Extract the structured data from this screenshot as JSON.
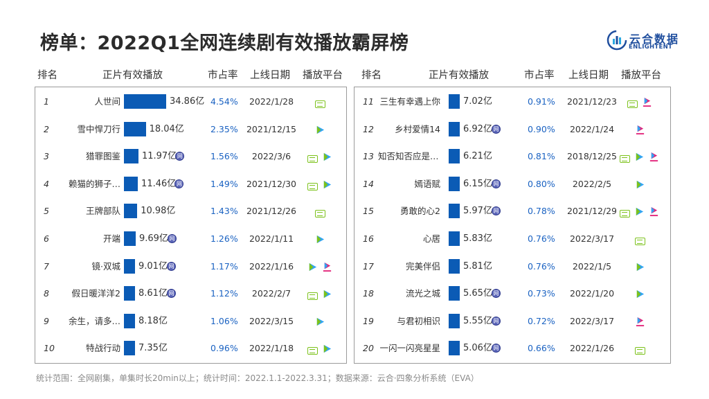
{
  "title": "榜单：2022Q1全网连续剧有效播放霸屏榜",
  "logo": {
    "cn": "云合数据",
    "en": "ENLIGHTENT"
  },
  "headers": {
    "rank": "排名",
    "views": "正片有效播放",
    "share": "市占率",
    "date": "上线日期",
    "platform": "播放平台"
  },
  "badge_text": "网",
  "colors": {
    "bar": "#0b5bb5",
    "share_text": "#1a62c2",
    "iqiyi": "#7cc21b",
    "tencent": "#31a4f2",
    "youku": "#e2247a",
    "net_badge": "#5a64b8"
  },
  "chart_data": {
    "type": "bar",
    "unit": "亿",
    "rows": [
      {
        "rank": "1",
        "name": "人世间",
        "value": 34.86,
        "label": "34.86亿",
        "web": false,
        "share": "4.54%",
        "date": "2022/1/28",
        "platforms": [
          "iqiyi"
        ]
      },
      {
        "rank": "2",
        "name": "雪中悍刀行",
        "value": 18.04,
        "label": "18.04亿",
        "web": false,
        "share": "2.35%",
        "date": "2021/12/15",
        "platforms": [
          "tencent"
        ]
      },
      {
        "rank": "3",
        "name": "猎罪图鉴",
        "value": 11.97,
        "label": "11.97亿",
        "web": true,
        "share": "1.56%",
        "date": "2022/3/6",
        "platforms": [
          "iqiyi",
          "tencent"
        ]
      },
      {
        "rank": "4",
        "name": "赖猫的狮子…",
        "value": 11.46,
        "label": "11.46亿",
        "web": true,
        "share": "1.49%",
        "date": "2021/12/30",
        "platforms": [
          "iqiyi",
          "tencent"
        ]
      },
      {
        "rank": "5",
        "name": "王牌部队",
        "value": 10.98,
        "label": "10.98亿",
        "web": false,
        "share": "1.43%",
        "date": "2021/12/26",
        "platforms": [
          "iqiyi"
        ]
      },
      {
        "rank": "6",
        "name": "开端",
        "value": 9.69,
        "label": "9.69亿",
        "web": true,
        "share": "1.26%",
        "date": "2022/1/11",
        "platforms": [
          "tencent"
        ]
      },
      {
        "rank": "7",
        "name": "镜·双城",
        "value": 9.01,
        "label": "9.01亿",
        "web": true,
        "share": "1.17%",
        "date": "2022/1/16",
        "platforms": [
          "tencent",
          "youku"
        ]
      },
      {
        "rank": "8",
        "name": "假日暖洋洋2",
        "value": 8.61,
        "label": "8.61亿",
        "web": true,
        "share": "1.12%",
        "date": "2022/2/7",
        "platforms": [
          "iqiyi",
          "tencent"
        ]
      },
      {
        "rank": "9",
        "name": "余生，请多…",
        "value": 8.18,
        "label": "8.18亿",
        "web": false,
        "share": "1.06%",
        "date": "2022/3/15",
        "platforms": [
          "tencent"
        ]
      },
      {
        "rank": "10",
        "name": "特战行动",
        "value": 7.35,
        "label": "7.35亿",
        "web": false,
        "share": "0.96%",
        "date": "2022/1/18",
        "platforms": [
          "iqiyi",
          "tencent"
        ]
      },
      {
        "rank": "11",
        "name": "三生有幸遇上你",
        "value": 7.02,
        "label": "7.02亿",
        "web": false,
        "share": "0.91%",
        "date": "2021/12/23",
        "platforms": [
          "iqiyi",
          "youku"
        ]
      },
      {
        "rank": "12",
        "name": "乡村爱情14",
        "value": 6.92,
        "label": "6.92亿",
        "web": true,
        "share": "0.90%",
        "date": "2022/1/24",
        "platforms": [
          "youku"
        ]
      },
      {
        "rank": "13",
        "name": "知否知否应是绿…",
        "value": 6.21,
        "label": "6.21亿",
        "web": false,
        "share": "0.81%",
        "date": "2018/12/25",
        "platforms": [
          "iqiyi",
          "tencent",
          "youku"
        ]
      },
      {
        "rank": "14",
        "name": "嫣语赋",
        "value": 6.15,
        "label": "6.15亿",
        "web": true,
        "share": "0.80%",
        "date": "2022/2/5",
        "platforms": [
          "tencent"
        ]
      },
      {
        "rank": "15",
        "name": "勇敢的心2",
        "value": 5.97,
        "label": "5.97亿",
        "web": true,
        "share": "0.78%",
        "date": "2021/12/29",
        "platforms": [
          "iqiyi",
          "tencent",
          "youku"
        ]
      },
      {
        "rank": "16",
        "name": "心居",
        "value": 5.83,
        "label": "5.83亿",
        "web": false,
        "share": "0.76%",
        "date": "2022/3/17",
        "platforms": [
          "iqiyi"
        ]
      },
      {
        "rank": "17",
        "name": "完美伴侣",
        "value": 5.81,
        "label": "5.81亿",
        "web": false,
        "share": "0.76%",
        "date": "2022/1/5",
        "platforms": [
          "tencent"
        ]
      },
      {
        "rank": "18",
        "name": "流光之城",
        "value": 5.65,
        "label": "5.65亿",
        "web": true,
        "share": "0.73%",
        "date": "2022/1/20",
        "platforms": [
          "tencent"
        ]
      },
      {
        "rank": "19",
        "name": "与君初相识",
        "value": 5.55,
        "label": "5.55亿",
        "web": true,
        "share": "0.72%",
        "date": "2022/3/17",
        "platforms": [
          "youku"
        ]
      },
      {
        "rank": "20",
        "name": "一闪一闪亮星星",
        "value": 5.06,
        "label": "5.06亿",
        "web": true,
        "share": "0.66%",
        "date": "2022/1/26",
        "platforms": [
          "iqiyi"
        ]
      }
    ]
  },
  "footer": "统计范围：全网剧集，单集时长20min以上；统计时间：2022.1.1-2022.3.31；数据来源：云合·四象分析系统（EVA）"
}
